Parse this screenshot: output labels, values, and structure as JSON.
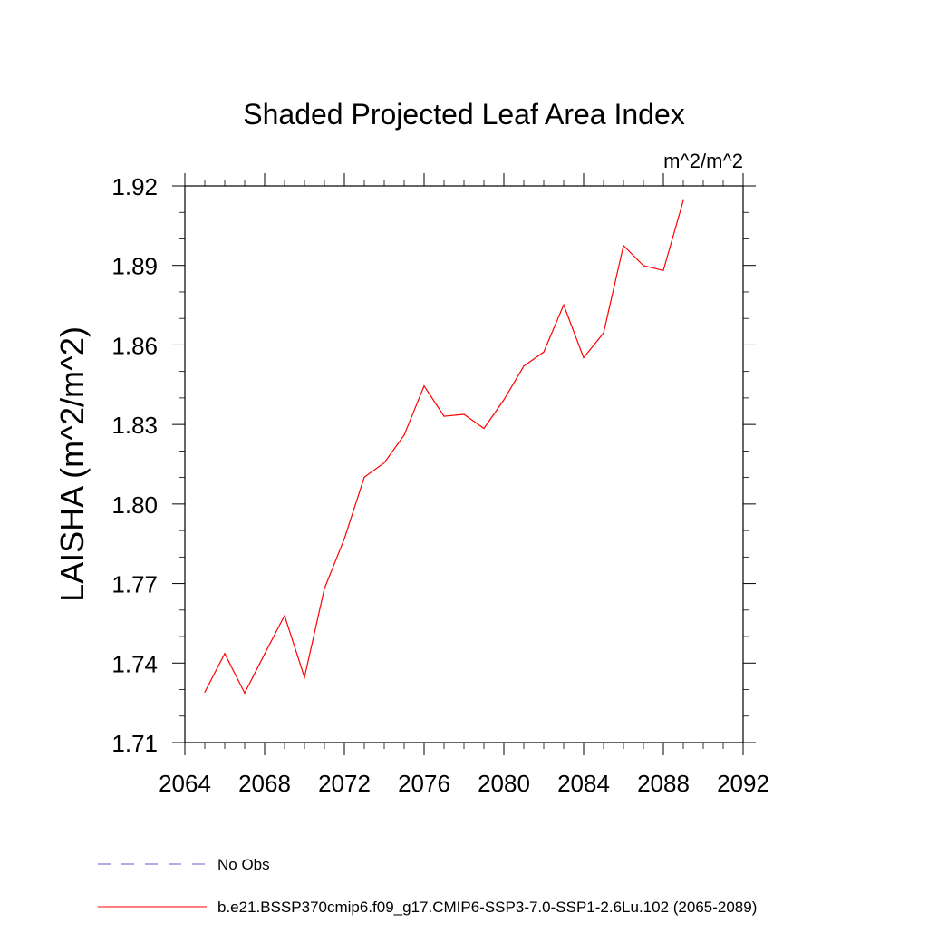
{
  "chart_data": {
    "type": "line",
    "title": "Shaded Projected Leaf Area Index",
    "units_label": "m^2/m^2",
    "ylabel": "LAISHA  (m^2/m^2)",
    "xlabel": "",
    "xlim": [
      2064,
      2092
    ],
    "ylim": [
      1.71,
      1.92
    ],
    "x_ticks": [
      "2064",
      "2068",
      "2072",
      "2076",
      "2080",
      "2084",
      "2088",
      "2092"
    ],
    "y_ticks": [
      "1.71",
      "1.74",
      "1.77",
      "1.80",
      "1.83",
      "1.86",
      "1.89",
      "1.92"
    ],
    "x_minor_step": 1,
    "y_minor_step": 0.01,
    "grid": false,
    "legend_position": "bottom-left",
    "legend": [
      {
        "label": "No Obs",
        "color": "#6a5acd",
        "dash": "dashed"
      },
      {
        "label": "b.e21.BSSP370cmip6.f09_g17.CMIP6-SSP3-7.0-SSP1-2.6Lu.102 (2065-2089)",
        "color": "#ff0000",
        "dash": "solid"
      }
    ],
    "series": [
      {
        "name": "b.e21.BSSP370cmip6.f09_g17.CMIP6-SSP3-7.0-SSP1-2.6Lu.102 (2065-2089)",
        "color": "#ff0000",
        "x": [
          2065,
          2066,
          2067,
          2068,
          2069,
          2070,
          2071,
          2072,
          2073,
          2074,
          2075,
          2076,
          2077,
          2078,
          2079,
          2080,
          2081,
          2082,
          2083,
          2084,
          2085,
          2086,
          2087,
          2088,
          2089
        ],
        "y": [
          1.729,
          1.7436,
          1.7287,
          1.7434,
          1.7579,
          1.7346,
          1.7681,
          1.7869,
          1.8101,
          1.8155,
          1.826,
          1.8445,
          1.8331,
          1.8338,
          1.8285,
          1.8393,
          1.852,
          1.8573,
          1.8751,
          1.8552,
          1.8645,
          1.8975,
          1.8899,
          1.8881,
          1.9145
        ]
      }
    ]
  }
}
